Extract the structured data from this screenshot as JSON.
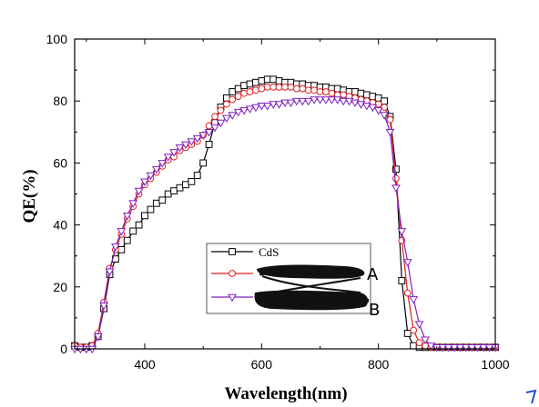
{
  "chart_data": {
    "type": "line",
    "title": "",
    "xlabel": "Wavelength(nm)",
    "ylabel": "QE(%)",
    "xlim": [
      280,
      1000
    ],
    "ylim": [
      0,
      100
    ],
    "xticks": [
      400,
      600,
      800,
      1000
    ],
    "yticks": [
      0,
      20,
      40,
      60,
      80,
      100
    ],
    "grid": false,
    "legend_position": "center-bottom",
    "series": [
      {
        "name": "CdS",
        "color": "#000000",
        "marker": "square",
        "x": [
          280,
          290,
          300,
          310,
          320,
          330,
          340,
          350,
          360,
          370,
          380,
          390,
          400,
          410,
          420,
          430,
          440,
          450,
          460,
          470,
          480,
          490,
          500,
          510,
          520,
          530,
          540,
          550,
          560,
          570,
          580,
          590,
          600,
          610,
          620,
          630,
          640,
          650,
          660,
          670,
          680,
          690,
          700,
          710,
          720,
          730,
          740,
          750,
          760,
          770,
          780,
          790,
          800,
          810,
          820,
          830,
          840,
          850,
          860,
          870,
          880,
          890,
          900,
          910,
          920,
          930,
          940,
          950,
          960,
          970,
          980,
          990,
          1000
        ],
        "y": [
          1,
          0.5,
          0.5,
          1,
          4,
          13,
          24,
          29,
          32,
          35,
          38,
          40,
          43,
          45,
          47,
          48,
          50,
          51,
          52,
          53,
          54,
          56,
          60,
          66,
          73,
          78,
          81,
          83,
          84,
          85,
          85.5,
          86,
          86.5,
          87,
          87,
          86.5,
          86,
          86,
          85.5,
          85.5,
          85,
          85,
          84.5,
          84.5,
          84,
          84,
          83.5,
          83,
          83,
          82.5,
          82,
          81.5,
          81,
          80,
          75,
          58,
          22,
          5,
          1,
          0.5,
          0.5,
          0.5,
          0.5,
          0.5,
          0.5,
          0.5,
          0.5,
          0.5,
          0.5,
          0.5,
          0.5,
          0.5,
          0.5
        ]
      },
      {
        "name": "",
        "color": "#e02020",
        "marker": "circle",
        "x": [
          280,
          290,
          300,
          310,
          320,
          330,
          340,
          350,
          360,
          370,
          380,
          390,
          400,
          410,
          420,
          430,
          440,
          450,
          460,
          470,
          480,
          490,
          500,
          510,
          520,
          530,
          540,
          550,
          560,
          570,
          580,
          590,
          600,
          610,
          620,
          630,
          640,
          650,
          660,
          670,
          680,
          690,
          700,
          710,
          720,
          730,
          740,
          750,
          760,
          770,
          780,
          790,
          800,
          810,
          820,
          830,
          840,
          850,
          860,
          870,
          880,
          890,
          900,
          910,
          920,
          930,
          940,
          950,
          960,
          970,
          980,
          990,
          1000
        ],
        "y": [
          1,
          0.5,
          0.5,
          1,
          5,
          15,
          26,
          32,
          37,
          42,
          46,
          50,
          53,
          55,
          57,
          59,
          61,
          62,
          64,
          65,
          66,
          67,
          69,
          72,
          75,
          77,
          79,
          80.5,
          81.5,
          82.5,
          83,
          83.5,
          84,
          84.5,
          84.5,
          84.5,
          84.5,
          84.5,
          84,
          84,
          83.5,
          83.5,
          83,
          83,
          82.5,
          82,
          82,
          81.5,
          81,
          80.5,
          80,
          79.5,
          79,
          78,
          74,
          55,
          35,
          18,
          6,
          2,
          1,
          0.5,
          0.5,
          0.5,
          0.5,
          0.5,
          0.5,
          0.5,
          0.5,
          0.5,
          0.5,
          0.5,
          0.5
        ]
      },
      {
        "name": "",
        "color": "#8020c0",
        "marker": "triangle-down",
        "x": [
          280,
          290,
          300,
          310,
          320,
          330,
          340,
          350,
          360,
          370,
          380,
          390,
          400,
          410,
          420,
          430,
          440,
          450,
          460,
          470,
          480,
          490,
          500,
          510,
          520,
          530,
          540,
          550,
          560,
          570,
          580,
          590,
          600,
          610,
          620,
          630,
          640,
          650,
          660,
          670,
          680,
          690,
          700,
          710,
          720,
          730,
          740,
          750,
          760,
          770,
          780,
          790,
          800,
          810,
          820,
          830,
          840,
          850,
          860,
          870,
          880,
          890,
          900,
          910,
          920,
          930,
          940,
          950,
          960,
          970,
          980,
          990,
          1000
        ],
        "y": [
          0,
          0,
          0,
          0,
          4,
          14,
          25,
          33,
          38,
          43,
          47,
          51,
          54,
          56,
          58,
          60,
          62,
          63.5,
          65,
          66,
          67,
          68,
          69,
          70,
          71.5,
          73,
          74.5,
          75.5,
          76.5,
          77,
          77.5,
          78,
          78.5,
          78.5,
          79,
          79,
          79.5,
          79.5,
          80,
          80,
          80,
          80.5,
          80.5,
          80.5,
          80.5,
          80.5,
          80,
          80,
          79.5,
          79,
          78.5,
          78,
          77,
          75.5,
          70,
          52,
          38,
          28,
          16,
          8,
          3,
          1,
          0.5,
          0.5,
          0.5,
          0.5,
          0.5,
          0.5,
          0.5,
          0.5,
          0.5,
          0.5,
          0.5
        ]
      }
    ],
    "annotations": [
      "A",
      "B"
    ]
  }
}
